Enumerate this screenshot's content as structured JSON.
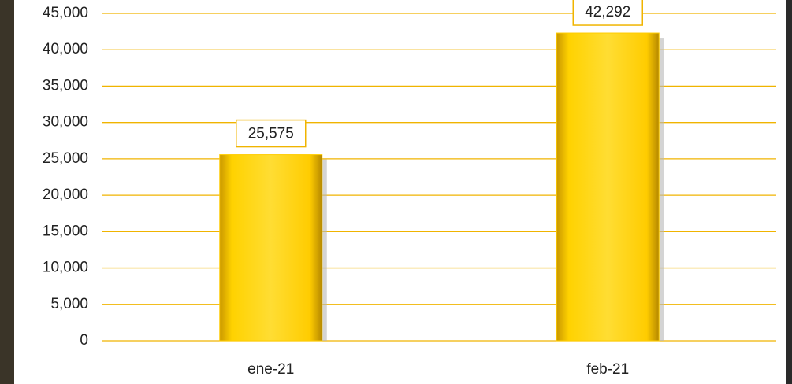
{
  "chart_data": {
    "type": "bar",
    "categories": [
      "ene-21",
      "feb-21"
    ],
    "values": [
      25575,
      42292
    ],
    "value_labels": [
      "25,575",
      "42,292"
    ],
    "color": "#ffcc00",
    "ylim": [
      0,
      45000
    ],
    "yticks": [
      0,
      {
        "value": 5000,
        "label": "5,000"
      },
      {
        "value": 10000,
        "label": "10,000"
      },
      {
        "value": 15000,
        "label": "15,000"
      },
      {
        "value": 20000,
        "label": "20,000"
      },
      {
        "value": 25000,
        "label": "25,000"
      },
      {
        "value": 30000,
        "label": "30,000"
      },
      {
        "value": 35000,
        "label": "35,000"
      },
      {
        "value": 40000,
        "label": "40,000"
      },
      {
        "value": 45000,
        "label": "45,000"
      }
    ],
    "grid": true
  }
}
